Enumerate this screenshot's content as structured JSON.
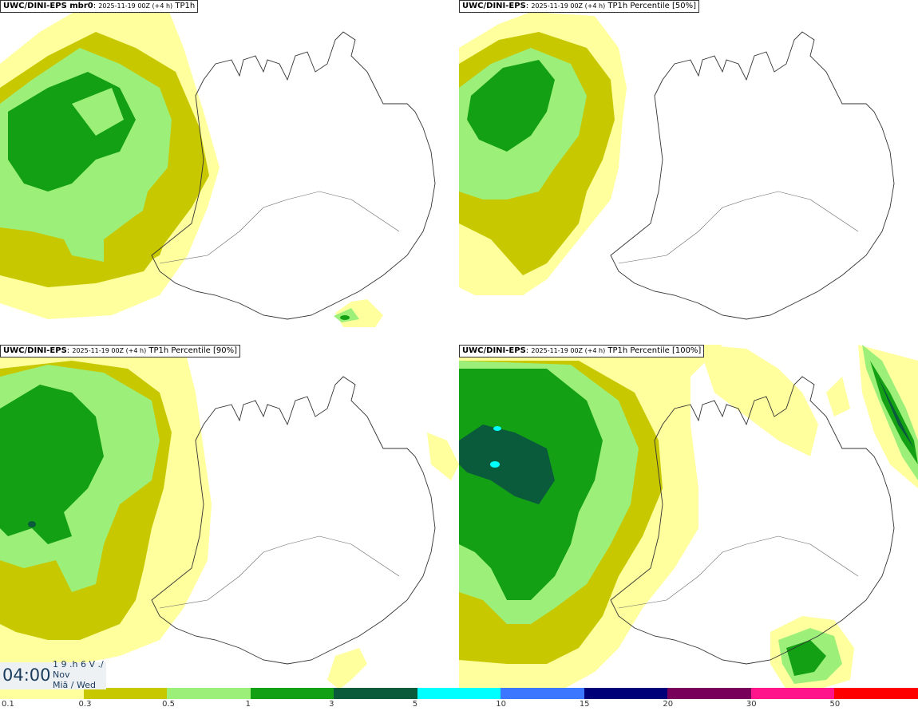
{
  "panels": [
    {
      "model": "UWC/DINI-EPS mbr0",
      "run": "2025-11-19 00Z (+4 h)",
      "field": "TP1h"
    },
    {
      "model": "UWC/DINI-EPS",
      "run": "2025-11-19 00Z (+4 h)",
      "field": "TP1h Percentile [50%]"
    },
    {
      "model": "UWC/DINI-EPS",
      "run": "2025-11-19 00Z (+4 h)",
      "field": "TP1h Percentile [90%]"
    },
    {
      "model": "UWC/DINI-EPS",
      "run": "2025-11-19 00Z (+4 h)",
      "field": "TP1h Percentile [100%]"
    }
  ],
  "time": {
    "hour": "04:00",
    "line1": "1 9 .h 6 V ./",
    "line2": "Nov",
    "line3": "Miã / Wed"
  },
  "legend": {
    "colors": [
      "#ffff9e",
      "#c8c800",
      "#9cf07a",
      "#14a014",
      "#0a5a3c",
      "#00ffff",
      "#3c78ff",
      "#000078",
      "#78005a",
      "#ff148c",
      "#ff0000"
    ],
    "ticks": [
      "0.1",
      "0.3",
      "0.5",
      "1",
      "3",
      "5",
      "10",
      "15",
      "20",
      "30",
      "50"
    ]
  },
  "palette": {
    "light": "#ffff9e",
    "olive": "#c8c800",
    "lightgreen": "#9cf07a",
    "green": "#14a014",
    "darkgreen": "#0a5a3c",
    "cyan": "#00ffff"
  }
}
